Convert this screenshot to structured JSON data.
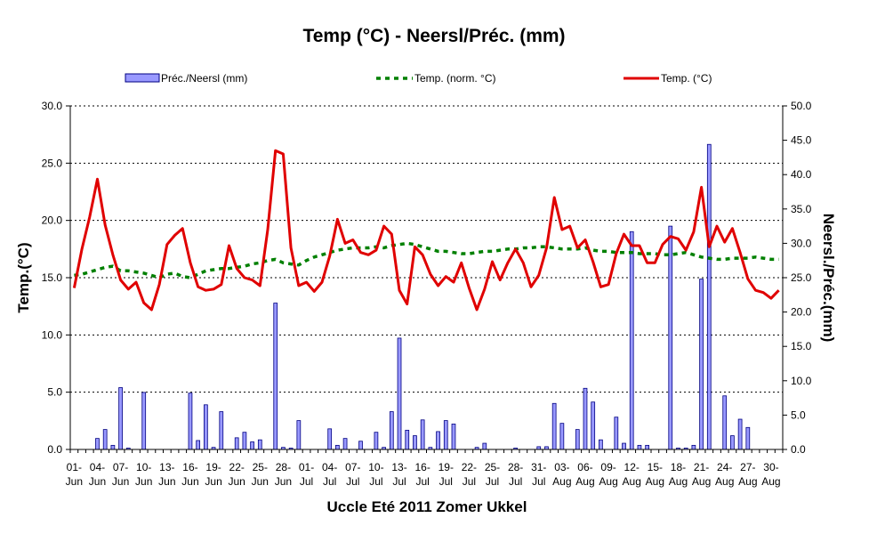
{
  "chart_data": {
    "type": "bar+line",
    "title": "Temp (°C) - Neersl/Préc. (mm)",
    "xlabel": "Uccle Eté 2011 Zomer  Ukkel",
    "ylabel_left": "Temp.(°C)",
    "ylabel_right": "Neersl./Préc.(mm)",
    "ylim_left": [
      0,
      30
    ],
    "ylim_right": [
      0,
      50
    ],
    "yticks_left": [
      "0.0",
      "5.0",
      "10.0",
      "15.0",
      "20.0",
      "25.0",
      "30.0"
    ],
    "yticks_right": [
      "0.0",
      "5.0",
      "10.0",
      "15.0",
      "20.0",
      "25.0",
      "30.0",
      "35.0",
      "40.0",
      "45.0",
      "50.0"
    ],
    "grid": "horizontal dotted",
    "legend_position": "top",
    "x_tick_labels": [
      [
        "01-",
        "Jun"
      ],
      [
        "04-",
        "Jun"
      ],
      [
        "07-",
        "Jun"
      ],
      [
        "10-",
        "Jun"
      ],
      [
        "13-",
        "Jun"
      ],
      [
        "16-",
        "Jun"
      ],
      [
        "19-",
        "Jun"
      ],
      [
        "22-",
        "Jun"
      ],
      [
        "25-",
        "Jun"
      ],
      [
        "28-",
        "Jun"
      ],
      [
        "01-",
        "Jul"
      ],
      [
        "04-",
        "Jul"
      ],
      [
        "07-",
        "Jul"
      ],
      [
        "10-",
        "Jul"
      ],
      [
        "13-",
        "Jul"
      ],
      [
        "16-",
        "Jul"
      ],
      [
        "19-",
        "Jul"
      ],
      [
        "22-",
        "Jul"
      ],
      [
        "25-",
        "Jul"
      ],
      [
        "28-",
        "Jul"
      ],
      [
        "31-",
        "Jul"
      ],
      [
        "03-",
        "Aug"
      ],
      [
        "06-",
        "Aug"
      ],
      [
        "09-",
        "Aug"
      ],
      [
        "12-",
        "Aug"
      ],
      [
        "15-",
        "Aug"
      ],
      [
        "18-",
        "Aug"
      ],
      [
        "21-",
        "Aug"
      ],
      [
        "24-",
        "Aug"
      ],
      [
        "27-",
        "Aug"
      ],
      [
        "30-",
        "Aug"
      ]
    ],
    "series": [
      {
        "name": "Préc./Neersl (mm)",
        "type": "bar",
        "axis": "right",
        "color": "#9999ff",
        "values": [
          0,
          0,
          0,
          1.6,
          2.9,
          0.6,
          9.0,
          0.2,
          0,
          8.3,
          0,
          0,
          0,
          0,
          0,
          8.2,
          1.3,
          6.5,
          0.3,
          5.5,
          0,
          1.7,
          2.5,
          1.1,
          1.4,
          0,
          21.3,
          0.3,
          0.2,
          4.2,
          0,
          0,
          0,
          3.0,
          0.6,
          1.6,
          0,
          1.2,
          0,
          2.5,
          0.3,
          5.5,
          16.2,
          2.8,
          2.0,
          4.3,
          0.3,
          2.6,
          4.2,
          3.7,
          0,
          0,
          0.3,
          0.9,
          0,
          0,
          0,
          0.2,
          0,
          0,
          0.4,
          0.4,
          6.7,
          3.8,
          0,
          2.9,
          8.9,
          6.9,
          1.4,
          0,
          4.7,
          0.9,
          31.7,
          0.6,
          0.6,
          0,
          0,
          32.5,
          0.2,
          0.2,
          0.6,
          24.8,
          44.4,
          0,
          7.8,
          2.0,
          4.4,
          3.2,
          0,
          0,
          0,
          0
        ]
      },
      {
        "name": "Temp. (norm. °C)",
        "type": "line",
        "axis": "left",
        "color": "#008000",
        "dash": "dashed",
        "values": [
          15.2,
          15.3,
          15.5,
          15.7,
          15.9,
          16.0,
          15.6,
          15.6,
          15.5,
          15.4,
          15.2,
          15.0,
          15.3,
          15.4,
          15.1,
          15.0,
          15.3,
          15.6,
          15.7,
          15.8,
          15.8,
          15.9,
          16.0,
          16.2,
          16.3,
          16.5,
          16.6,
          16.3,
          16.2,
          16.1,
          16.5,
          16.8,
          17.0,
          17.2,
          17.4,
          17.5,
          17.6,
          17.6,
          17.6,
          17.7,
          17.6,
          17.8,
          17.9,
          18.0,
          17.9,
          17.7,
          17.5,
          17.3,
          17.3,
          17.2,
          17.1,
          17.1,
          17.2,
          17.3,
          17.3,
          17.4,
          17.5,
          17.5,
          17.6,
          17.6,
          17.7,
          17.7,
          17.6,
          17.5,
          17.5,
          17.5,
          17.6,
          17.4,
          17.3,
          17.3,
          17.2,
          17.2,
          17.2,
          17.1,
          17.1,
          17.1,
          17.0,
          17.0,
          17.1,
          17.2,
          17.0,
          16.8,
          16.7,
          16.6,
          16.6,
          16.7,
          16.7,
          16.7,
          16.8,
          16.7,
          16.6,
          16.6
        ]
      },
      {
        "name": "Temp. (°C)",
        "type": "line",
        "axis": "left",
        "color": "#e00000",
        "values": [
          14.1,
          17.5,
          20.3,
          23.6,
          19.6,
          17.0,
          14.8,
          14.0,
          14.6,
          12.8,
          12.2,
          14.4,
          17.9,
          18.7,
          19.3,
          16.3,
          14.2,
          13.9,
          14.0,
          14.4,
          17.8,
          15.8,
          15.0,
          14.8,
          14.3,
          19.2,
          26.1,
          25.8,
          17.6,
          14.3,
          14.6,
          13.8,
          14.6,
          16.9,
          20.1,
          18.0,
          18.3,
          17.2,
          17.0,
          17.4,
          19.5,
          18.8,
          13.9,
          12.7,
          17.7,
          17.0,
          15.3,
          14.3,
          15.1,
          14.6,
          16.3,
          14.1,
          12.2,
          14.0,
          16.4,
          14.8,
          16.3,
          17.5,
          16.3,
          14.2,
          15.2,
          17.6,
          22.0,
          19.2,
          19.5,
          17.6,
          18.3,
          16.4,
          14.2,
          14.4,
          17.1,
          18.8,
          17.8,
          17.8,
          16.3,
          16.3,
          17.9,
          18.6,
          18.4,
          17.4,
          19.0,
          22.9,
          17.7,
          19.5,
          18.1,
          19.3,
          17.2,
          14.9,
          13.9,
          13.7,
          13.2,
          13.9
        ]
      }
    ]
  }
}
